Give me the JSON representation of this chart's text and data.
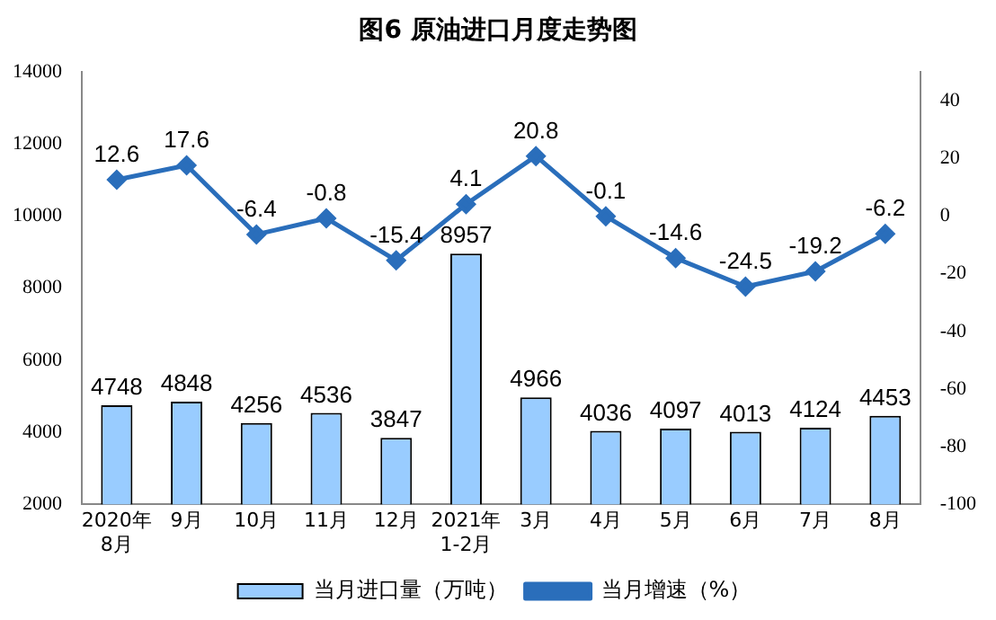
{
  "chart_data": {
    "type": "bar",
    "title": "图6  原油进口月度走势图",
    "categories": [
      "2020年\n8月",
      "9月",
      "10月",
      "11月",
      "12月",
      "2021年\n1-2月",
      "3月",
      "4月",
      "5月",
      "6月",
      "7月",
      "8月"
    ],
    "series": [
      {
        "name": "当月进口量（万吨）",
        "color": "#99ccff",
        "values": [
          4748,
          4848,
          4256,
          4536,
          3847,
          8957,
          4966,
          4036,
          4097,
          4013,
          4124,
          4453
        ]
      },
      {
        "name": "当月增速（%）",
        "type": "line",
        "axis": "y2",
        "color": "#2a6ebb",
        "values": [
          12.6,
          17.6,
          -6.4,
          -0.8,
          -15.4,
          4.1,
          20.8,
          -0.1,
          -14.6,
          -24.5,
          -19.2,
          -6.2
        ]
      }
    ],
    "ylim": [
      2000,
      14000
    ],
    "yticks": [
      2000,
      4000,
      6000,
      8000,
      10000,
      12000,
      14000
    ],
    "y2lim": [
      -100,
      50
    ],
    "y2ticks": [
      -100,
      -80,
      -60,
      -40,
      -20,
      0,
      20,
      40
    ],
    "grid": false,
    "legend": "bottom",
    "marker": "diamond",
    "data_labels": true
  }
}
